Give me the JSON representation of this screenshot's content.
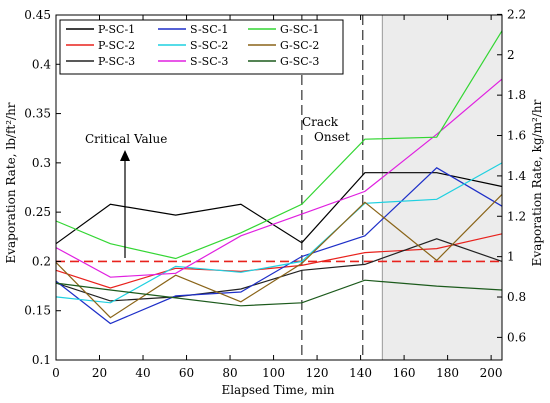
{
  "chart_data": {
    "type": "line",
    "xlabel": "Elapsed Time, min",
    "ylabel": "Evaporation Rate, lb/ft²/hr",
    "y2label": "Evaporation Rate, kg/m²/hr",
    "xlim": [
      0,
      205
    ],
    "ylim": [
      0.1,
      0.45
    ],
    "y2lim": [
      0.488,
      2.197
    ],
    "x_ticks": [
      0,
      20,
      40,
      60,
      80,
      100,
      120,
      140,
      160,
      180,
      200
    ],
    "y_ticks": [
      0.1,
      0.15,
      0.2,
      0.25,
      0.3,
      0.35,
      0.4,
      0.45
    ],
    "y2_ticks": [
      0.6,
      0.8,
      1,
      1.2,
      1.4,
      1.6,
      1.8,
      2,
      2.2
    ],
    "grid": false,
    "legend_position": "top-left",
    "series": [
      {
        "name": "P-SC-1",
        "color": "#000000",
        "x": [
          0,
          25,
          55,
          85,
          113,
          142,
          175,
          205
        ],
        "values": [
          0.218,
          0.258,
          0.247,
          0.258,
          0.219,
          0.29,
          0.29,
          0.276
        ]
      },
      {
        "name": "P-SC-2",
        "color": "#e8221d",
        "x": [
          0,
          25,
          55,
          85,
          113,
          142,
          175,
          205
        ],
        "values": [
          0.191,
          0.173,
          0.193,
          0.19,
          0.196,
          0.209,
          0.213,
          0.228
        ]
      },
      {
        "name": "P-SC-3",
        "color": "#222222",
        "x": [
          0,
          25,
          55,
          85,
          113,
          142,
          175,
          205
        ],
        "values": [
          0.178,
          0.16,
          0.164,
          0.172,
          0.191,
          0.197,
          0.223,
          0.2
        ]
      },
      {
        "name": "S-SC-1",
        "color": "#1e2fc8",
        "x": [
          0,
          25,
          55,
          85,
          113,
          142,
          175,
          205
        ],
        "values": [
          0.18,
          0.137,
          0.165,
          0.169,
          0.205,
          0.226,
          0.295,
          0.256
        ]
      },
      {
        "name": "S-SC-2",
        "color": "#1fd0e0",
        "x": [
          0,
          25,
          55,
          85,
          113,
          142,
          175,
          205
        ],
        "values": [
          0.164,
          0.158,
          0.195,
          0.189,
          0.2,
          0.259,
          0.263,
          0.3
        ]
      },
      {
        "name": "S-SC-3",
        "color": "#e020e0",
        "x": [
          0,
          25,
          55,
          85,
          113,
          142,
          175,
          205
        ],
        "values": [
          0.214,
          0.184,
          0.188,
          0.226,
          0.248,
          0.271,
          0.329,
          0.385
        ]
      },
      {
        "name": "G-SC-1",
        "color": "#33d633",
        "x": [
          0,
          25,
          55,
          85,
          113,
          142,
          175,
          205
        ],
        "values": [
          0.241,
          0.218,
          0.203,
          0.229,
          0.258,
          0.324,
          0.326,
          0.434
        ]
      },
      {
        "name": "G-SC-2",
        "color": "#8a6418",
        "x": [
          0,
          25,
          55,
          85,
          113,
          142,
          175,
          205
        ],
        "values": [
          0.199,
          0.143,
          0.186,
          0.159,
          0.198,
          0.26,
          0.201,
          0.268
        ]
      },
      {
        "name": "G-SC-3",
        "color": "#1c5a1c",
        "x": [
          0,
          25,
          55,
          85,
          113,
          142,
          175,
          205
        ],
        "values": [
          0.178,
          0.171,
          0.163,
          0.155,
          0.158,
          0.181,
          0.175,
          0.171
        ]
      }
    ],
    "critical_value": 0.2,
    "critical_label": "Critical Value",
    "crack_onset_label": [
      "Crack",
      "Onset"
    ],
    "crack_onset_x": [
      113,
      141
    ],
    "shaded_from_x": 150
  }
}
